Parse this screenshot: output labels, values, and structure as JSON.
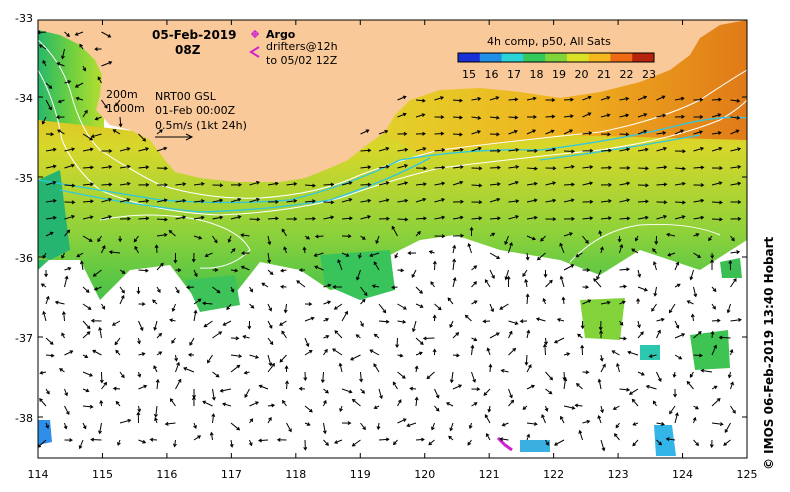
{
  "map": {
    "title_date": "05-Feb-2019",
    "title_time": "08Z",
    "argo_label": "Argo",
    "drifters_label": "drifters@12h",
    "drifters_to_label": "to 05/02 12Z",
    "contour_200": "200m",
    "contour_1000": "1000m",
    "current_source": "NRT00 GSL",
    "current_date": "01-Feb 00:00Z",
    "current_scale": "0.5m/s (1kt 24h)",
    "colorbar_title": "4h comp, p50, All Sats",
    "colorbar_ticks": [
      "15",
      "16",
      "17",
      "18",
      "19",
      "20",
      "21",
      "22",
      "23"
    ],
    "colorbar_colors": [
      "#1a2fd6",
      "#1f8fe8",
      "#2ad3d8",
      "#35c85a",
      "#7fd53a",
      "#d9e226",
      "#f5b81f",
      "#ee6a14",
      "#b8230d"
    ],
    "lon_ticks": [
      "114",
      "115",
      "116",
      "117",
      "118",
      "119",
      "120",
      "121",
      "122",
      "123",
      "124",
      "125"
    ],
    "lat_ticks": [
      "-33",
      "-34",
      "-35",
      "-36",
      "-37",
      "-38"
    ],
    "credit": "© IMOS 06-Feb-2019 13:40 Hobart",
    "land_color": "#f9c99a",
    "drifter_color": "#d020d0"
  }
}
